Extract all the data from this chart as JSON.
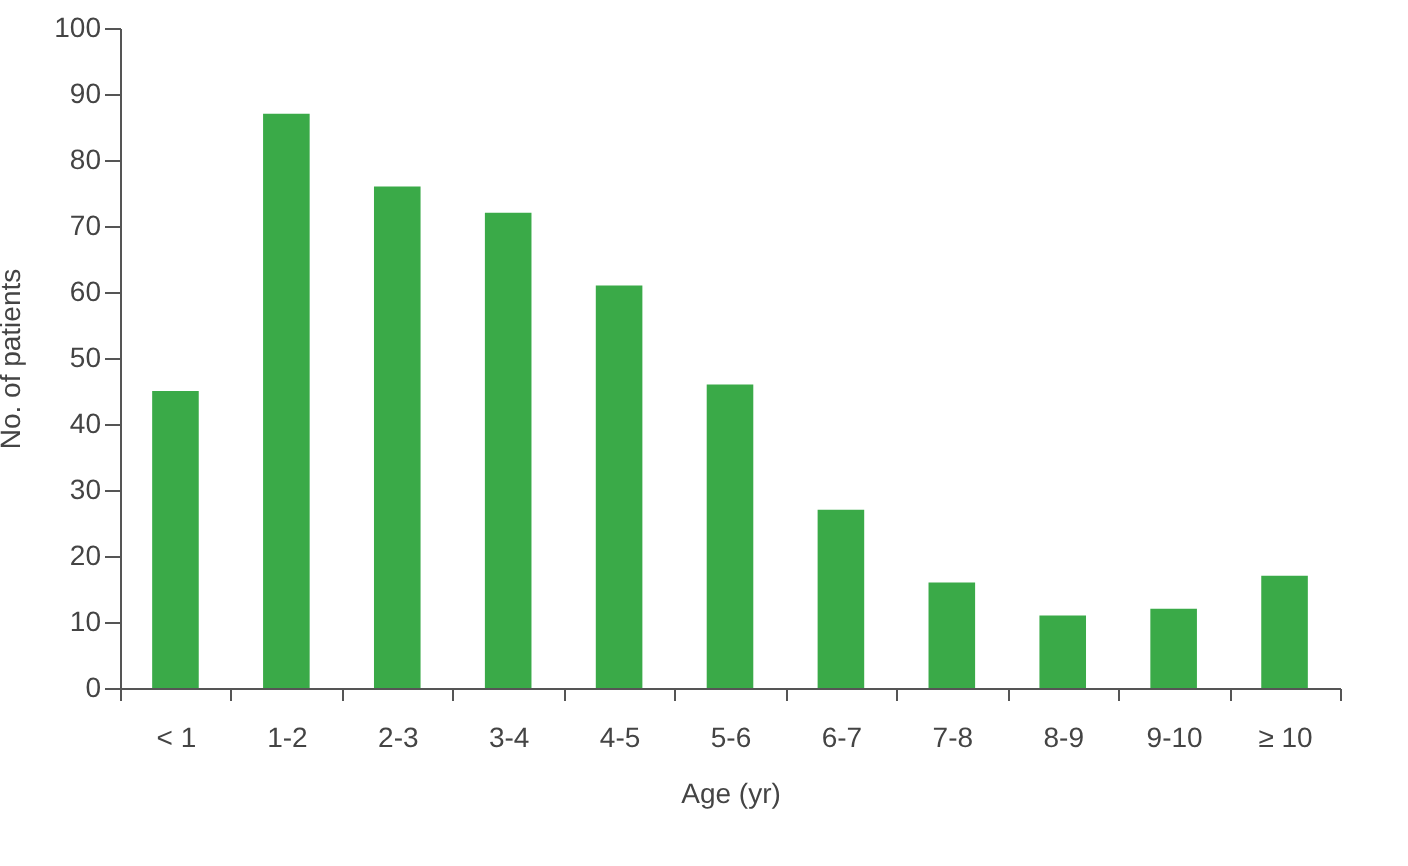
{
  "chart_data": {
    "type": "bar",
    "xlabel": "Age (yr)",
    "ylabel": "No. of patients",
    "categories": [
      "< 1",
      "1-2",
      "2-3",
      "3-4",
      "4-5",
      "5-6",
      "6-7",
      "7-8",
      "8-9",
      "9-10",
      "≥ 10"
    ],
    "values": [
      45,
      87,
      76,
      72,
      61,
      46,
      27,
      16,
      11,
      12,
      17
    ],
    "color": "#3aaa48",
    "ylim": [
      0,
      100
    ],
    "yticks": [
      0,
      10,
      20,
      30,
      40,
      50,
      60,
      70,
      80,
      90,
      100
    ],
    "grid": false
  }
}
